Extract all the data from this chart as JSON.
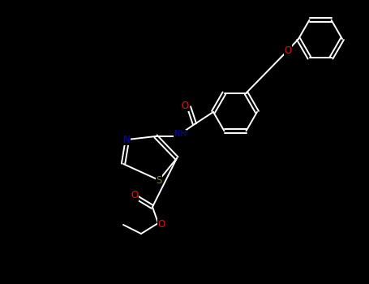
{
  "bg_color": "#000000",
  "bond_color": "#ffffff",
  "atom_colors": {
    "O": "#ff0000",
    "N": "#0000cd",
    "S": "#808000",
    "C": "#ffffff"
  },
  "figsize": [
    4.55,
    3.5
  ],
  "dpi": 100,
  "lw": 1.4,
  "fs": 7.5
}
